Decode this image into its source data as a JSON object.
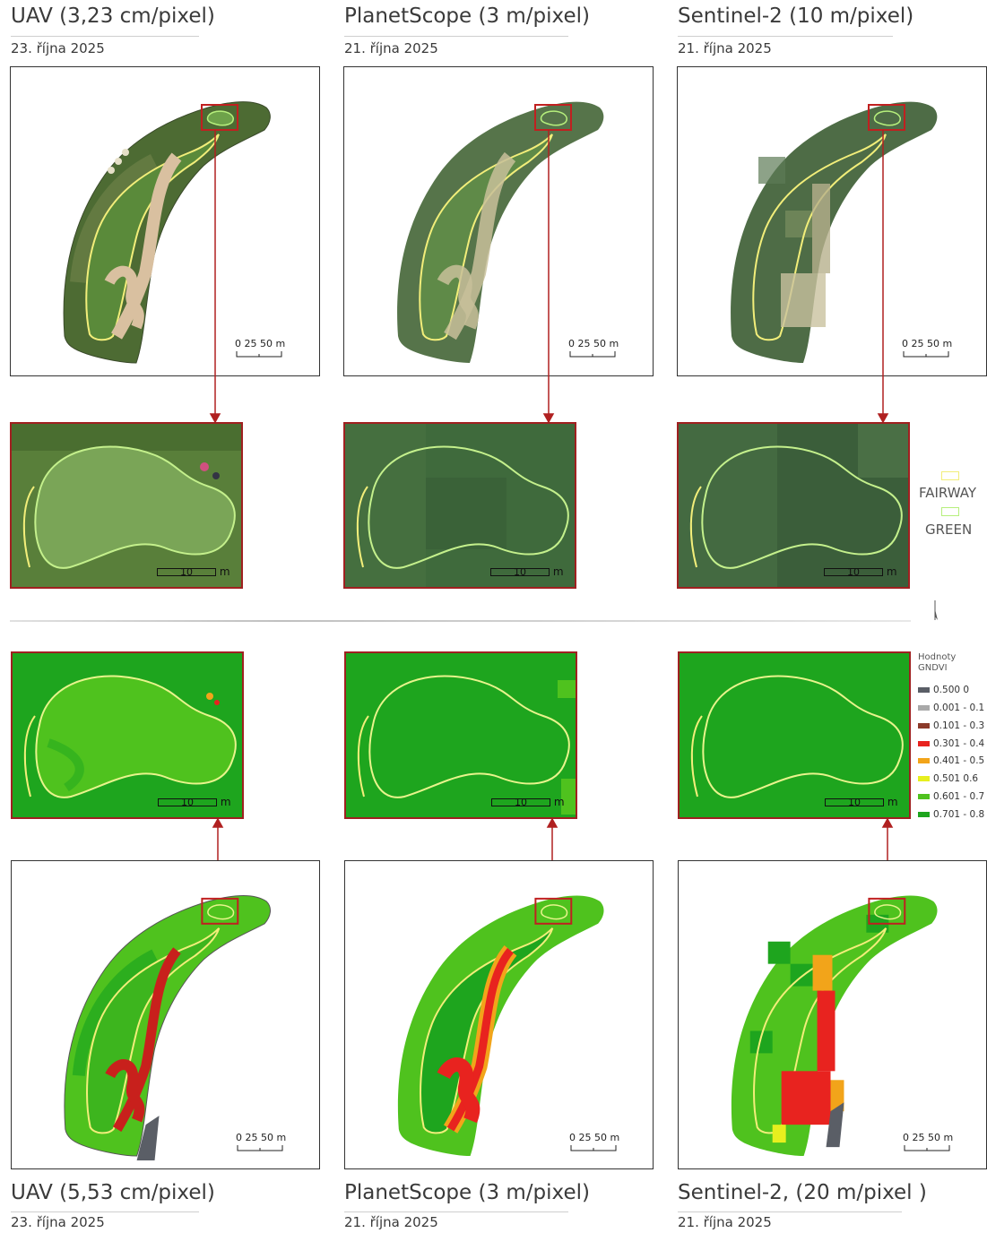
{
  "top": {
    "columns": [
      {
        "title": "UAV (3,23 cm/pixel)",
        "date": "23. října 2025"
      },
      {
        "title": "PlanetScope (3 m/pixel)",
        "date": "21. října 2025"
      },
      {
        "title": "Sentinel-2 (10 m/pixel)",
        "date": "21. října 2025"
      }
    ]
  },
  "bottom": {
    "columns": [
      {
        "title": "UAV (5,53 cm/pixel)",
        "date": "23. října 2025"
      },
      {
        "title": "PlanetScope (3 m/pixel)",
        "date": "21. října 2025"
      },
      {
        "title": "Sentinel-2, (20 m/pixel )",
        "date": "21. října 2025"
      }
    ]
  },
  "scalebar": {
    "labels": "0 25 50 m"
  },
  "zoom_scalebar": {
    "value": "10",
    "unit": "m"
  },
  "legend_outline": {
    "fairway": "FAIRWAY",
    "green": "GREEN",
    "fairway_color": "#f2ee7a",
    "green_color": "#b6ef7c"
  },
  "legend_gndvi": {
    "title": "Hodnoty GNDVI",
    "classes": [
      {
        "label": "0.500  0",
        "color": "#5a5e66"
      },
      {
        "label": "0.001 - 0.1",
        "color": "#a9a9a9"
      },
      {
        "label": "0.101 - 0.3",
        "color": "#8b3a2a"
      },
      {
        "label": "0.301 - 0.4",
        "color": "#e8231f"
      },
      {
        "label": "0.401 - 0.5",
        "color": "#f2a41a"
      },
      {
        "label": "0.501  0.6",
        "color": "#e7ef1e"
      },
      {
        "label": "0.601 - 0.7",
        "color": "#4fc21e"
      },
      {
        "label": "0.701 - 0.8",
        "color": "#1ea51e"
      }
    ]
  },
  "colors": {
    "frame_red": "#b02020",
    "rgb_green": "#3f6b36",
    "gndvi_green": "#1ea51e"
  }
}
